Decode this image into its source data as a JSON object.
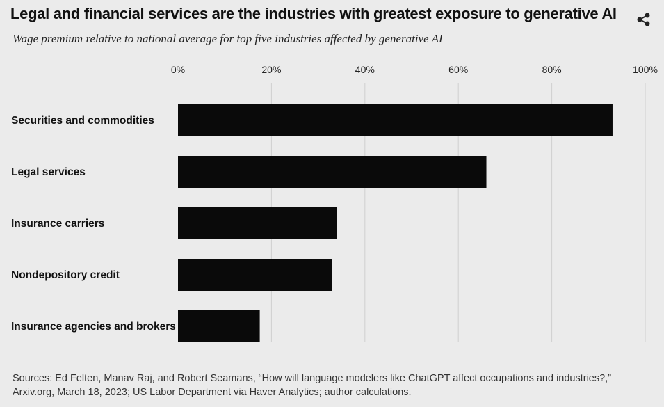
{
  "header": {
    "title": "Legal and financial services are the industries with greatest exposure to generative AI",
    "subtitle": "Wage premium relative to national average for top five industries affected by generative AI"
  },
  "toolbar": {
    "share_icon": "share-icon"
  },
  "footer": {
    "source": "Sources: Ed Felten, Manav Raj, and Robert Seamans, “How will language modelers like ChatGPT affect occupations and industries?,” Arxiv.org, March 18, 2023; US Labor Department via Haver Analytics; author calculations."
  },
  "chart_data": {
    "type": "bar",
    "orientation": "horizontal",
    "title": "Legal and financial services are the industries with greatest exposure to generative AI",
    "subtitle": "Wage premium relative to national average for top five industries affected by generative AI",
    "categories": [
      "Securities and commodities",
      "Legal services",
      "Insurance carriers",
      "Nondepository credit",
      "Insurance agencies and brokers"
    ],
    "values": [
      93,
      66,
      34,
      33,
      17.5
    ],
    "xlim": [
      0,
      100
    ],
    "x_ticks": [
      0,
      20,
      40,
      60,
      80,
      100
    ],
    "x_tick_labels": [
      "0%",
      "20%",
      "40%",
      "60%",
      "80%",
      "100%"
    ],
    "xaxis_position": "top",
    "grid": true,
    "bar_color": "#0a0a0a",
    "grid_color": "#cfcfcf"
  }
}
